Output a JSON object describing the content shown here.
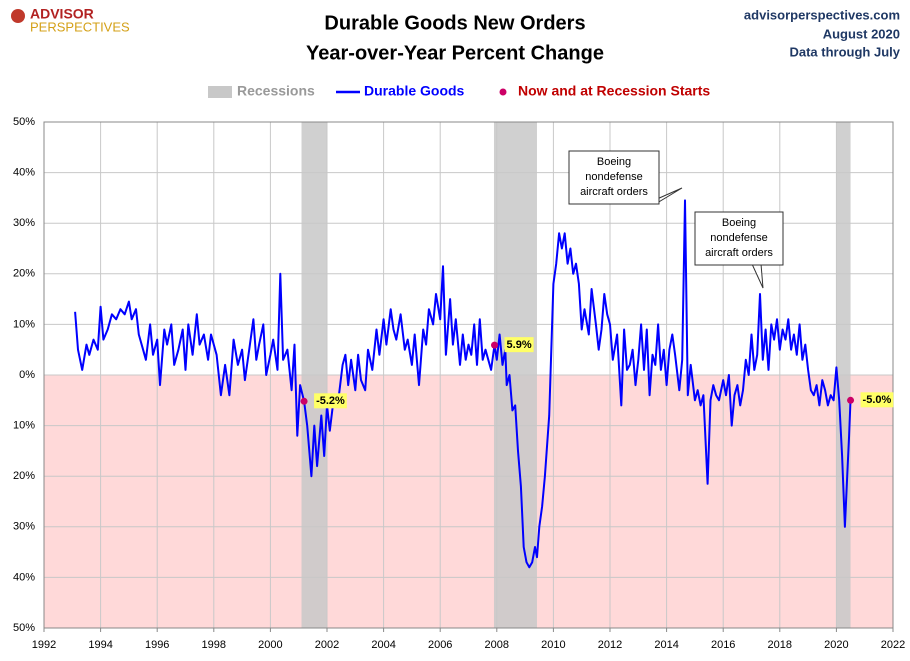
{
  "logo": {
    "line1": "ADVISOR",
    "line2": "PERSPECTIVES"
  },
  "source": {
    "site": "advisorperspectives.com",
    "date": "August 2020",
    "note": "Data through July"
  },
  "chart_data": {
    "type": "line",
    "title": "Durable Goods New Orders",
    "subtitle": "Year-over-Year Percent Change",
    "xlim": [
      1992,
      2022
    ],
    "xticks": [
      1992,
      1994,
      1996,
      1998,
      2000,
      2002,
      2004,
      2006,
      2008,
      2010,
      2012,
      2014,
      2016,
      2018,
      2020,
      2022
    ],
    "ylim": [
      -50,
      50
    ],
    "yticks": [
      {
        "value": -50,
        "label": "50%"
      },
      {
        "value": -40,
        "label": "40%"
      },
      {
        "value": -30,
        "label": "30%"
      },
      {
        "value": -20,
        "label": "20%"
      },
      {
        "value": -10,
        "label": "10%"
      },
      {
        "value": 0,
        "label": "0%"
      },
      {
        "value": 10,
        "label": "10%"
      },
      {
        "value": 20,
        "label": "20%"
      },
      {
        "value": 30,
        "label": "30%"
      },
      {
        "value": 40,
        "label": "40%"
      },
      {
        "value": 50,
        "label": "50%"
      }
    ],
    "grid": true,
    "recessions": {
      "name": "Recessions",
      "color": "#c8c8c8",
      "spans": [
        [
          2001.1,
          2002.0
        ],
        [
          2007.9,
          2009.42
        ],
        [
          2020.0,
          2020.5
        ]
      ]
    },
    "series": [
      {
        "name": "Durable Goods",
        "color": "#0000ff",
        "x": [
          1993.1,
          1993.2,
          1993.35,
          1993.5,
          1993.6,
          1993.75,
          1993.9,
          1994.0,
          1994.1,
          1994.25,
          1994.4,
          1994.55,
          1994.7,
          1994.85,
          1995.0,
          1995.1,
          1995.25,
          1995.35,
          1995.5,
          1995.6,
          1995.75,
          1995.85,
          1996.0,
          1996.1,
          1996.25,
          1996.35,
          1996.5,
          1996.6,
          1996.75,
          1996.9,
          1997.0,
          1997.1,
          1997.25,
          1997.4,
          1997.5,
          1997.65,
          1997.8,
          1997.9,
          1998.1,
          1998.25,
          1998.4,
          1998.55,
          1998.7,
          1998.85,
          1999.0,
          1999.1,
          1999.25,
          1999.4,
          1999.5,
          1999.6,
          1999.75,
          1999.85,
          2000.0,
          2000.1,
          2000.25,
          2000.35,
          2000.45,
          2000.6,
          2000.75,
          2000.85,
          2000.95,
          2001.05,
          2001.19,
          2001.3,
          2001.45,
          2001.55,
          2001.65,
          2001.8,
          2001.9,
          2002.0,
          2002.1,
          2002.25,
          2002.4,
          2002.55,
          2002.65,
          2002.75,
          2002.85,
          2003.0,
          2003.1,
          2003.2,
          2003.35,
          2003.45,
          2003.6,
          2003.75,
          2003.85,
          2004.0,
          2004.1,
          2004.25,
          2004.35,
          2004.45,
          2004.6,
          2004.75,
          2004.85,
          2005.0,
          2005.1,
          2005.25,
          2005.4,
          2005.5,
          2005.6,
          2005.75,
          2005.85,
          2006.0,
          2006.1,
          2006.2,
          2006.35,
          2006.45,
          2006.55,
          2006.7,
          2006.8,
          2006.9,
          2007.0,
          2007.1,
          2007.2,
          2007.3,
          2007.4,
          2007.5,
          2007.6,
          2007.7,
          2007.8,
          2007.92,
          2008.0,
          2008.1,
          2008.2,
          2008.3,
          2008.35,
          2008.45,
          2008.55,
          2008.65,
          2008.75,
          2008.85,
          2008.95,
          2009.05,
          2009.15,
          2009.25,
          2009.35,
          2009.42,
          2009.5,
          2009.6,
          2009.7,
          2009.85,
          2010.0,
          2010.1,
          2010.2,
          2010.3,
          2010.4,
          2010.5,
          2010.6,
          2010.7,
          2010.8,
          2010.9,
          2011.0,
          2011.1,
          2011.25,
          2011.35,
          2011.5,
          2011.6,
          2011.7,
          2011.8,
          2011.9,
          2012.0,
          2012.1,
          2012.25,
          2012.4,
          2012.5,
          2012.6,
          2012.7,
          2012.8,
          2012.9,
          2013.0,
          2013.1,
          2013.2,
          2013.3,
          2013.4,
          2013.5,
          2013.6,
          2013.7,
          2013.8,
          2013.9,
          2014.0,
          2014.1,
          2014.2,
          2014.3,
          2014.45,
          2014.55,
          2014.65,
          2014.75,
          2014.85,
          2015.0,
          2015.1,
          2015.2,
          2015.3,
          2015.45,
          2015.55,
          2015.65,
          2015.75,
          2015.85,
          2016.0,
          2016.1,
          2016.2,
          2016.3,
          2016.4,
          2016.5,
          2016.6,
          2016.7,
          2016.8,
          2016.9,
          2017.0,
          2017.1,
          2017.2,
          2017.3,
          2017.4,
          2017.5,
          2017.6,
          2017.7,
          2017.8,
          2017.9,
          2018.0,
          2018.1,
          2018.2,
          2018.3,
          2018.4,
          2018.5,
          2018.6,
          2018.7,
          2018.8,
          2018.9,
          2019.0,
          2019.1,
          2019.2,
          2019.3,
          2019.4,
          2019.5,
          2019.6,
          2019.7,
          2019.8,
          2019.9,
          2020.0,
          2020.1,
          2020.2,
          2020.3,
          2020.38,
          2020.45,
          2020.5
        ],
        "values": [
          12.5,
          5,
          1,
          6,
          4,
          7,
          5,
          13.5,
          7,
          9,
          12,
          11,
          13,
          12,
          14.5,
          11,
          13,
          8,
          5,
          3,
          10,
          4,
          7,
          -2,
          9,
          6,
          10,
          2,
          5,
          9,
          1,
          10,
          4,
          12,
          6,
          8,
          3,
          8,
          4,
          -4,
          2,
          -4,
          7,
          2,
          5,
          -1,
          5,
          11,
          3,
          6,
          10,
          0,
          4,
          7,
          1,
          20,
          3,
          5,
          -3,
          6,
          -12,
          -2,
          -5.2,
          -10,
          -20,
          -10,
          -18,
          -8,
          -16,
          -6,
          -11,
          -4,
          -5,
          2,
          4,
          -2,
          3,
          -3,
          4,
          -1,
          -3,
          5,
          1,
          9,
          4,
          11,
          6,
          13,
          9,
          7,
          12,
          5,
          7,
          2,
          8,
          -2,
          9,
          6,
          13,
          10,
          16,
          11,
          21.5,
          4,
          15,
          6,
          11,
          2,
          8,
          3,
          6,
          4,
          10,
          2,
          11,
          3,
          5,
          3,
          1,
          5.9,
          3,
          8,
          2,
          5,
          -2,
          0,
          -7,
          -6,
          -15,
          -22,
          -34,
          -37,
          -38,
          -37,
          -34,
          -36,
          -30,
          -26,
          -20,
          -8,
          18,
          22,
          28,
          25,
          28,
          22,
          25,
          20,
          22,
          18,
          9,
          13,
          8,
          17,
          10,
          5,
          9,
          16,
          12,
          10,
          3,
          8,
          -6,
          9,
          1,
          2,
          5,
          -2,
          3,
          10,
          1,
          9,
          -4,
          4,
          2,
          10,
          1,
          5,
          -2,
          5,
          8,
          4,
          -3,
          3,
          34.5,
          -4,
          2,
          -5,
          -3,
          -6,
          -4,
          -21.5,
          -5,
          -2,
          -4,
          -5,
          -1,
          -4,
          0,
          -10,
          -4,
          -2,
          -6,
          -3,
          3,
          0,
          8,
          1,
          4,
          16,
          3,
          9,
          1,
          10,
          7,
          11,
          5,
          9,
          7,
          11,
          5,
          8,
          4,
          10,
          3,
          6,
          1,
          -3,
          -4,
          -2,
          -6,
          -1,
          -3,
          -6,
          -4,
          -5,
          1.5,
          -5,
          -16,
          -30,
          -20,
          -12,
          -5
        ]
      }
    ],
    "highlights": {
      "name": "Now and at Recession Starts",
      "color": "#cc0066",
      "x": [
        2001.19,
        2007.92,
        2020.5
      ],
      "values": [
        -5.2,
        5.9,
        -5.0
      ],
      "value_labels": [
        "-5.2%",
        "5.9%",
        "-5.0%"
      ]
    },
    "annotations": [
      [
        "Boeing",
        "nondefense",
        "aircraft orders"
      ],
      [
        "Boeing",
        "nondefense",
        "aircraft orders"
      ]
    ]
  }
}
